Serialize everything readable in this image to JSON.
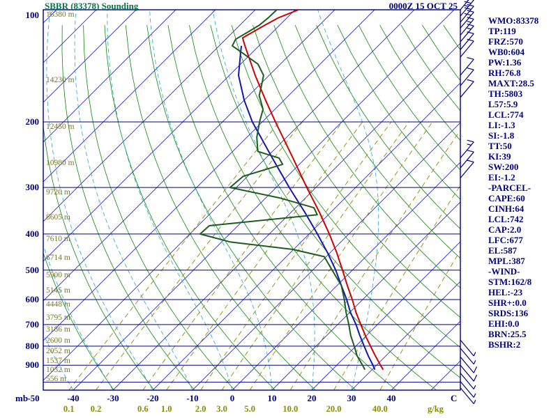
{
  "header": {
    "title": "SBBR (83378) Sounding",
    "datetime": "0000Z 15 OCT 25"
  },
  "indices_panel": {
    "lines": [
      "WMO:83378",
      "TP:119",
      "FRZ:570",
      "WB0:604",
      "PW:1.36",
      "RH:76.8",
      "MAXT:28.5",
      "TH:5803",
      "L57:5.9",
      "LCL:774",
      "LI:-1.3",
      "SI:-1.8",
      "TT:50",
      "KI:39",
      "SW:200",
      "EI:-1.2",
      "-PARCEL-",
      "CAPE:60",
      "CINH:64",
      "LCL:742",
      "CAP:2.0",
      "LFC:677",
      "EL:587",
      "MPL:387",
      "-WIND-",
      "STM:162/8",
      "HEL:-23",
      "SHR+:0.0",
      "SRDS:136",
      "EHI:0.0",
      "BRN:25.5",
      "BSHR:2"
    ]
  },
  "axes": {
    "pressure_unit": "mb",
    "pressure_ticks": [
      100,
      200,
      300,
      400,
      500,
      600,
      700,
      800,
      900
    ],
    "temp_unit": "C",
    "temp_ticks": [
      -50,
      -40,
      -30,
      -20,
      -10,
      0,
      10,
      20,
      30,
      40
    ],
    "mixing_ratio_unit": "g/kg",
    "mixing_ratio_ticks": [
      0.1,
      0.2,
      0.6,
      1.0,
      2.0,
      3.0,
      5.0,
      10.0,
      20.0,
      40.0
    ],
    "height_labels": [
      {
        "p": 100,
        "label": "16380 m"
      },
      {
        "p": 150,
        "label": "14230 m"
      },
      {
        "p": 200,
        "label": "12450 m"
      },
      {
        "p": 250,
        "label": "10980 m"
      },
      {
        "p": 300,
        "label": "9720 m"
      },
      {
        "p": 350,
        "label": "8605 m"
      },
      {
        "p": 400,
        "label": "7610 m"
      },
      {
        "p": 450,
        "label": "6714 m"
      },
      {
        "p": 500,
        "label": "5900 m"
      },
      {
        "p": 550,
        "label": "5145 m"
      },
      {
        "p": 600,
        "label": "4448 m"
      },
      {
        "p": 650,
        "label": "3795 m"
      },
      {
        "p": 700,
        "label": "3186 m"
      },
      {
        "p": 750,
        "label": "2600 m"
      },
      {
        "p": 800,
        "label": "2052 m"
      },
      {
        "p": 850,
        "label": "1537 m"
      },
      {
        "p": 900,
        "label": "1032 m"
      },
      {
        "p": 950,
        "label": "556 m"
      }
    ]
  },
  "chart_data": {
    "type": "skewt-sounding",
    "pressure_top_mb": 100,
    "pressure_bottom_mb": 1050,
    "skew_deg": 45,
    "background": {
      "isotherms_c": {
        "from": -140,
        "to": 50,
        "step": 10
      },
      "dry_adiabats_theta_k": {
        "from": 240,
        "to": 440,
        "step": 10
      },
      "moist_adiabats_start_c": {
        "from": -60,
        "to": 30,
        "step": 10
      },
      "mixing_ratio_top_mb": 200
    },
    "series": [
      {
        "name": "temperature",
        "color": "#d00000",
        "points": [
          [
            925,
            32.8
          ],
          [
            900,
            31.0
          ],
          [
            850,
            27.4
          ],
          [
            800,
            23.7
          ],
          [
            750,
            19.8
          ],
          [
            700,
            15.8
          ],
          [
            650,
            11.6
          ],
          [
            600,
            7.4
          ],
          [
            550,
            2.6
          ],
          [
            500,
            -2.5
          ],
          [
            450,
            -8.2
          ],
          [
            400,
            -14.9
          ],
          [
            350,
            -22.8
          ],
          [
            300,
            -32.3
          ],
          [
            250,
            -43.2
          ],
          [
            200,
            -56.7
          ],
          [
            175,
            -64.6
          ],
          [
            150,
            -73.5
          ],
          [
            125,
            -83.5
          ],
          [
            119,
            -86.1
          ],
          [
            110,
            -83.7
          ],
          [
            105,
            -82.1
          ],
          [
            100,
            -79.1
          ]
        ]
      },
      {
        "name": "wetbulb-parcel",
        "color": "#1414b4",
        "points": [
          [
            925,
            30.7
          ],
          [
            900,
            29.1
          ],
          [
            850,
            25.6
          ],
          [
            800,
            22.1
          ],
          [
            750,
            18.4
          ],
          [
            700,
            14.6
          ],
          [
            650,
            10.2
          ],
          [
            600,
            6.0
          ],
          [
            550,
            1.1
          ],
          [
            500,
            -4.2
          ],
          [
            450,
            -10.5
          ],
          [
            400,
            -17.9
          ],
          [
            350,
            -26.5
          ],
          [
            300,
            -36.7
          ],
          [
            250,
            -48.4
          ],
          [
            200,
            -62.5
          ],
          [
            175,
            -70.0
          ],
          [
            150,
            -77.7
          ],
          [
            130,
            -83.0
          ],
          [
            125,
            -84.4
          ]
        ]
      },
      {
        "name": "dewpoint",
        "color": "#1c5c1c",
        "points": [
          [
            925,
            28.2
          ],
          [
            900,
            26.5
          ],
          [
            850,
            22.8
          ],
          [
            800,
            19.6
          ],
          [
            750,
            16.1
          ],
          [
            700,
            12.8
          ],
          [
            650,
            9.1
          ],
          [
            600,
            5.4
          ],
          [
            550,
            1.1
          ],
          [
            500,
            -5.1
          ],
          [
            460,
            -10.5
          ],
          [
            440,
            -20.2
          ],
          [
            420,
            -37.9
          ],
          [
            400,
            -47.4
          ],
          [
            380,
            -47.2
          ],
          [
            355,
            -22.8
          ],
          [
            340,
            -25.4
          ],
          [
            320,
            -36.5
          ],
          [
            300,
            -51.6
          ],
          [
            280,
            -51.1
          ],
          [
            260,
            -44.2
          ],
          [
            250,
            -46.7
          ],
          [
            240,
            -53.7
          ],
          [
            220,
            -57.5
          ],
          [
            200,
            -60.7
          ],
          [
            185,
            -63.0
          ],
          [
            170,
            -67.4
          ],
          [
            160,
            -69.3
          ],
          [
            150,
            -71.4
          ],
          [
            140,
            -75.6
          ],
          [
            130,
            -82.8
          ],
          [
            125,
            -86.7
          ],
          [
            120,
            -87.5
          ],
          [
            115,
            -86.3
          ],
          [
            110,
            -85.1
          ],
          [
            105,
            -84.7
          ],
          [
            100,
            -84.6
          ]
        ]
      }
    ],
    "wind_barbs": [
      {
        "p": 100,
        "spd": 25,
        "dir": "ne"
      },
      {
        "p": 104,
        "spd": 25,
        "dir": "ne"
      },
      {
        "p": 108,
        "spd": 20,
        "dir": "ne"
      },
      {
        "p": 112,
        "spd": 20,
        "dir": "ne"
      },
      {
        "p": 117,
        "spd": 15,
        "dir": "ne"
      },
      {
        "p": 122,
        "spd": 15,
        "dir": "ne"
      },
      {
        "p": 128,
        "spd": 10,
        "dir": "ne"
      },
      {
        "p": 134,
        "spd": 10,
        "dir": "ne"
      },
      {
        "p": 150,
        "spd": 10,
        "dir": "ne"
      },
      {
        "p": 160,
        "spd": 10,
        "dir": "ne"
      },
      {
        "p": 172,
        "spd": 10,
        "dir": "ne"
      },
      {
        "p": 250,
        "spd": 15,
        "dir": "ne"
      },
      {
        "p": 266,
        "spd": 10,
        "dir": "ne"
      },
      {
        "p": 283,
        "spd": 10,
        "dir": "ne"
      },
      {
        "p": 770,
        "spd": 5,
        "dir": "se"
      },
      {
        "p": 810,
        "spd": 5,
        "dir": "se"
      },
      {
        "p": 855,
        "spd": 10,
        "dir": "se"
      },
      {
        "p": 900,
        "spd": 10,
        "dir": "se"
      },
      {
        "p": 945,
        "spd": 5,
        "dir": "se"
      },
      {
        "p": 995,
        "spd": 5,
        "dir": "se"
      },
      {
        "p": 1035,
        "spd": 5,
        "dir": "se"
      }
    ]
  },
  "colors": {
    "navy": "#000080",
    "isotherm": "#2929cc",
    "dry_adiabat": "#0b8a0b",
    "moist_adiabat": "#22a8cc",
    "mixing_ratio": "#8a8a00",
    "mixing_ratio_text": "#8a8a00",
    "height_text": "#77772a",
    "title": "#007744",
    "temperature": "#d00000",
    "dewpoint": "#1c5c1c",
    "parcel": "#1414b4"
  }
}
